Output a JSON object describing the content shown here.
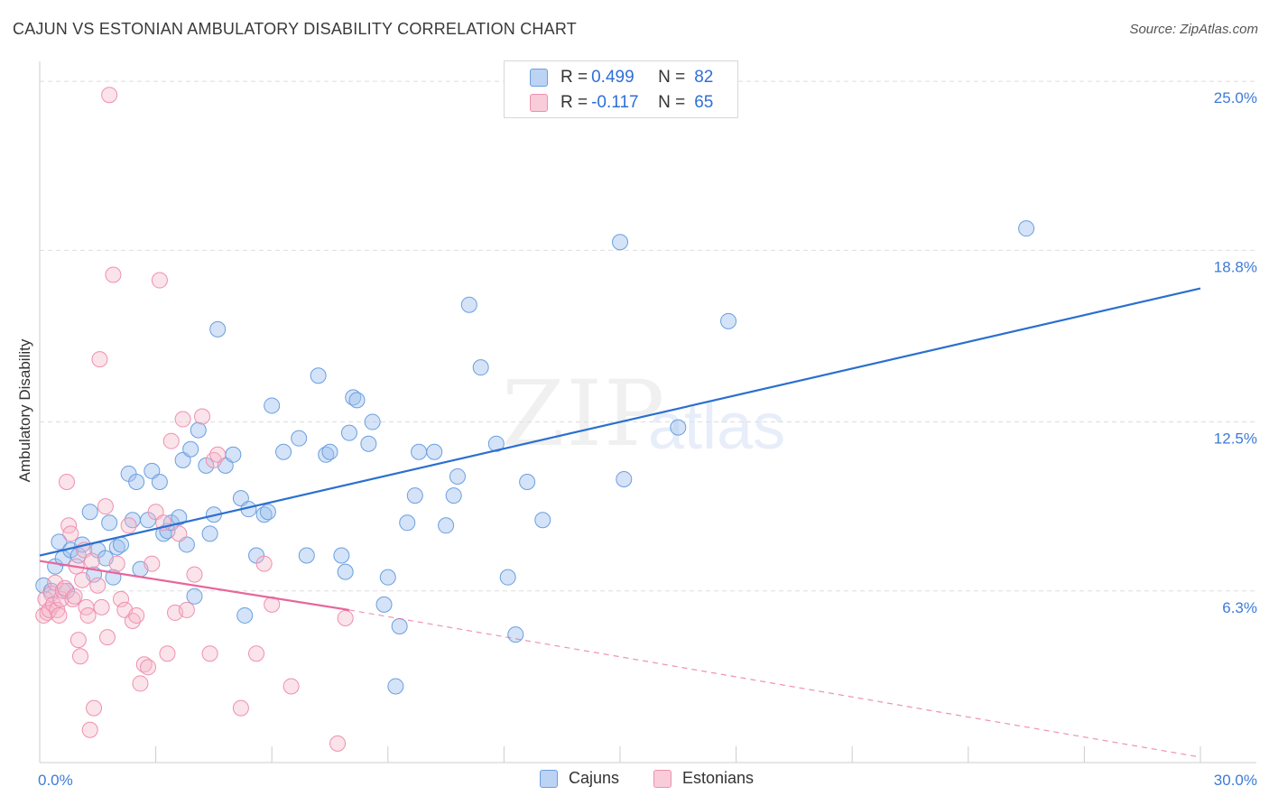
{
  "header": {
    "title": "CAJUN VS ESTONIAN AMBULATORY DISABILITY CORRELATION CHART",
    "source": "Source: ZipAtlas.com"
  },
  "watermark": {
    "zip": "ZIP",
    "atlas": "atlas"
  },
  "legend": {
    "rows": [
      {
        "r_label": "R =",
        "r_value": "0.499",
        "n_label": "N =",
        "n_value": "82",
        "color": "#a8c6f0"
      },
      {
        "r_label": "R =",
        "r_value": "-0.117",
        "n_label": "N =",
        "n_value": "65",
        "color": "#f5b8cb"
      }
    ]
  },
  "bottom_legend": {
    "cajuns": "Cajuns",
    "estonians": "Estonians"
  },
  "chart_data": {
    "type": "scatter",
    "title": "CAJUN VS ESTONIAN AMBULATORY DISABILITY CORRELATION CHART",
    "xlabel": "",
    "ylabel": "Ambulatory Disability",
    "xlim": [
      0,
      30
    ],
    "ylim": [
      0,
      25.6
    ],
    "x_tick_labels": [
      "0.0%",
      "30.0%"
    ],
    "y_ticks": [
      6.3,
      12.5,
      18.8,
      25.0
    ],
    "y_tick_labels": [
      "6.3%",
      "12.5%",
      "18.8%",
      "25.0%"
    ],
    "grid": true,
    "legend_position": "top-center",
    "colors": {
      "cajuns": "#6a9fe0",
      "cajuns_line": "#2b6fcf",
      "estonians": "#ef8fb0",
      "estonians_line": "#e8669a"
    },
    "series": [
      {
        "name": "Cajuns",
        "trend": {
          "x": [
            0,
            30
          ],
          "y": [
            7.6,
            17.4
          ]
        },
        "points": [
          [
            0.1,
            6.5
          ],
          [
            0.3,
            6.3
          ],
          [
            0.4,
            7.2
          ],
          [
            0.5,
            8.1
          ],
          [
            0.6,
            7.5
          ],
          [
            0.7,
            6.3
          ],
          [
            0.8,
            7.8
          ],
          [
            1.0,
            7.6
          ],
          [
            1.1,
            8.0
          ],
          [
            1.3,
            9.2
          ],
          [
            1.4,
            6.9
          ],
          [
            1.5,
            7.8
          ],
          [
            1.7,
            7.5
          ],
          [
            1.8,
            8.8
          ],
          [
            1.9,
            6.8
          ],
          [
            2.0,
            7.9
          ],
          [
            2.1,
            8.0
          ],
          [
            2.3,
            10.6
          ],
          [
            2.4,
            8.9
          ],
          [
            2.5,
            10.3
          ],
          [
            2.6,
            7.1
          ],
          [
            2.8,
            8.9
          ],
          [
            2.9,
            10.7
          ],
          [
            3.1,
            10.3
          ],
          [
            3.2,
            8.4
          ],
          [
            3.3,
            8.5
          ],
          [
            3.4,
            8.8
          ],
          [
            3.6,
            9.0
          ],
          [
            3.7,
            11.1
          ],
          [
            3.8,
            8.0
          ],
          [
            3.9,
            11.5
          ],
          [
            4.0,
            6.1
          ],
          [
            4.1,
            12.2
          ],
          [
            4.3,
            10.9
          ],
          [
            4.4,
            8.4
          ],
          [
            4.5,
            9.1
          ],
          [
            4.6,
            15.9
          ],
          [
            4.8,
            10.9
          ],
          [
            5.0,
            11.3
          ],
          [
            5.2,
            9.7
          ],
          [
            5.3,
            5.4
          ],
          [
            5.4,
            9.3
          ],
          [
            5.6,
            7.6
          ],
          [
            5.8,
            9.1
          ],
          [
            5.9,
            9.2
          ],
          [
            6.0,
            13.1
          ],
          [
            6.3,
            11.4
          ],
          [
            6.7,
            11.9
          ],
          [
            6.9,
            7.6
          ],
          [
            7.2,
            14.2
          ],
          [
            7.4,
            11.3
          ],
          [
            7.5,
            11.4
          ],
          [
            7.8,
            7.6
          ],
          [
            7.9,
            7.0
          ],
          [
            8.0,
            12.1
          ],
          [
            8.1,
            13.4
          ],
          [
            8.2,
            13.3
          ],
          [
            8.5,
            11.7
          ],
          [
            8.6,
            12.5
          ],
          [
            8.9,
            5.8
          ],
          [
            9.0,
            6.8
          ],
          [
            9.2,
            2.8
          ],
          [
            9.3,
            5.0
          ],
          [
            9.5,
            8.8
          ],
          [
            9.7,
            9.8
          ],
          [
            9.8,
            11.4
          ],
          [
            10.2,
            11.4
          ],
          [
            10.5,
            8.7
          ],
          [
            10.7,
            9.8
          ],
          [
            10.8,
            10.5
          ],
          [
            11.1,
            16.8
          ],
          [
            11.4,
            14.5
          ],
          [
            11.8,
            11.7
          ],
          [
            12.1,
            6.8
          ],
          [
            12.3,
            4.7
          ],
          [
            12.6,
            10.3
          ],
          [
            13.0,
            8.9
          ],
          [
            15.0,
            19.1
          ],
          [
            15.1,
            10.4
          ],
          [
            16.5,
            12.3
          ],
          [
            17.8,
            16.2
          ],
          [
            25.5,
            19.6
          ]
        ]
      },
      {
        "name": "Estonians",
        "trend": {
          "x": [
            0,
            8.0
          ],
          "y": [
            7.4,
            5.6
          ]
        },
        "trend_extended": {
          "x": [
            8.0,
            30
          ],
          "y": [
            5.6,
            0.2
          ]
        },
        "points": [
          [
            0.1,
            5.4
          ],
          [
            0.15,
            6.0
          ],
          [
            0.2,
            5.5
          ],
          [
            0.25,
            5.6
          ],
          [
            0.3,
            6.2
          ],
          [
            0.35,
            5.8
          ],
          [
            0.4,
            6.6
          ],
          [
            0.45,
            5.6
          ],
          [
            0.5,
            5.4
          ],
          [
            0.55,
            6.0
          ],
          [
            0.6,
            6.3
          ],
          [
            0.65,
            6.4
          ],
          [
            0.7,
            10.3
          ],
          [
            0.75,
            8.7
          ],
          [
            0.8,
            8.4
          ],
          [
            0.85,
            6.0
          ],
          [
            0.9,
            6.1
          ],
          [
            0.95,
            7.2
          ],
          [
            1.0,
            4.5
          ],
          [
            1.05,
            3.9
          ],
          [
            1.1,
            6.7
          ],
          [
            1.15,
            7.8
          ],
          [
            1.2,
            5.7
          ],
          [
            1.25,
            5.4
          ],
          [
            1.3,
            1.2
          ],
          [
            1.35,
            7.4
          ],
          [
            1.4,
            2.0
          ],
          [
            1.5,
            6.5
          ],
          [
            1.55,
            14.8
          ],
          [
            1.6,
            5.7
          ],
          [
            1.7,
            9.4
          ],
          [
            1.75,
            4.6
          ],
          [
            1.8,
            24.5
          ],
          [
            1.9,
            17.9
          ],
          [
            2.0,
            7.3
          ],
          [
            2.1,
            6.0
          ],
          [
            2.2,
            5.6
          ],
          [
            2.3,
            8.7
          ],
          [
            2.4,
            5.2
          ],
          [
            2.5,
            5.4
          ],
          [
            2.6,
            2.9
          ],
          [
            2.7,
            3.6
          ],
          [
            2.8,
            3.5
          ],
          [
            2.9,
            7.3
          ],
          [
            3.0,
            9.2
          ],
          [
            3.1,
            17.7
          ],
          [
            3.2,
            8.8
          ],
          [
            3.3,
            4.0
          ],
          [
            3.4,
            11.8
          ],
          [
            3.5,
            5.5
          ],
          [
            3.6,
            8.4
          ],
          [
            3.7,
            12.6
          ],
          [
            3.8,
            5.6
          ],
          [
            4.0,
            6.9
          ],
          [
            4.2,
            12.7
          ],
          [
            4.4,
            4.0
          ],
          [
            4.5,
            11.1
          ],
          [
            4.6,
            11.3
          ],
          [
            5.2,
            2.0
          ],
          [
            5.6,
            4.0
          ],
          [
            5.8,
            7.3
          ],
          [
            6.0,
            5.8
          ],
          [
            6.5,
            2.8
          ],
          [
            7.7,
            0.7
          ],
          [
            7.9,
            5.3
          ]
        ]
      }
    ]
  }
}
